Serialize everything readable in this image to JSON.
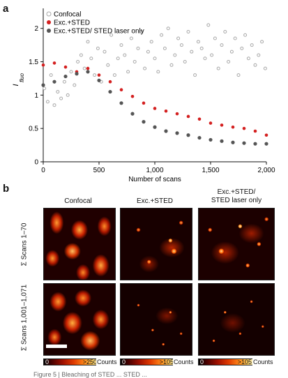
{
  "panel_a_label": "a",
  "panel_b_label": "b",
  "chart_data": {
    "type": "scatter",
    "xlabel": "Number of scans",
    "ylabel": "I",
    "ylabel_sub": "fluo",
    "xlim": [
      0,
      2000
    ],
    "ylim": [
      0,
      2.3
    ],
    "x_ticks": [
      0,
      500,
      1000,
      1500,
      2000
    ],
    "x_tick_labels": [
      "0",
      "500",
      "1,000",
      "1,500",
      "2,000"
    ],
    "y_ticks": [
      0,
      0.5,
      1,
      1.5,
      2
    ],
    "y_tick_labels": [
      "0",
      "0.5",
      "1",
      "1.5",
      "2"
    ],
    "legend_position": "top-left",
    "series": [
      {
        "name": "Confocal",
        "color": "#a8a8a8",
        "x": [
          10,
          40,
          70,
          100,
          130,
          160,
          190,
          220,
          250,
          280,
          310,
          340,
          370,
          400,
          430,
          460,
          490,
          520,
          550,
          580,
          610,
          640,
          670,
          700,
          730,
          760,
          790,
          820,
          850,
          880,
          910,
          940,
          970,
          1000,
          1030,
          1060,
          1090,
          1120,
          1150,
          1180,
          1210,
          1240,
          1270,
          1300,
          1330,
          1360,
          1390,
          1420,
          1450,
          1480,
          1510,
          1540,
          1570,
          1600,
          1630,
          1660,
          1690,
          1720,
          1750,
          1780,
          1810,
          1840,
          1870,
          1900,
          1930,
          1960,
          1990
        ],
        "y": [
          1.1,
          0.9,
          1.3,
          0.85,
          1.05,
          0.95,
          1.2,
          1.0,
          1.35,
          1.15,
          1.5,
          1.6,
          1.4,
          1.8,
          1.55,
          1.3,
          1.7,
          1.2,
          1.65,
          1.45,
          1.9,
          1.3,
          1.55,
          1.75,
          1.6,
          1.35,
          1.85,
          1.5,
          1.7,
          1.95,
          1.4,
          1.65,
          1.8,
          1.55,
          1.35,
          1.9,
          1.7,
          2.0,
          1.45,
          1.6,
          1.85,
          1.75,
          1.5,
          1.95,
          1.65,
          1.3,
          1.8,
          1.7,
          1.55,
          2.05,
          1.6,
          1.85,
          1.4,
          1.75,
          1.95,
          1.5,
          1.65,
          1.85,
          1.3,
          1.7,
          1.9,
          1.55,
          1.75,
          1.45,
          1.6,
          1.8,
          1.4
        ]
      },
      {
        "name": "Exc.+STED",
        "color": "#d42020",
        "x": [
          0,
          100,
          200,
          300,
          400,
          500,
          600,
          700,
          800,
          900,
          1000,
          1100,
          1200,
          1300,
          1400,
          1500,
          1600,
          1700,
          1800,
          1900,
          2000
        ],
        "y": [
          1.45,
          1.48,
          1.42,
          1.35,
          1.4,
          1.3,
          1.2,
          1.08,
          0.98,
          0.88,
          0.8,
          0.76,
          0.72,
          0.68,
          0.64,
          0.58,
          0.55,
          0.52,
          0.5,
          0.46,
          0.4
        ]
      },
      {
        "name": "Exc.+STED/ STED laser only",
        "color": "#555555",
        "x": [
          0,
          100,
          200,
          300,
          400,
          500,
          600,
          700,
          800,
          900,
          1000,
          1100,
          1200,
          1300,
          1400,
          1500,
          1600,
          1700,
          1800,
          1900,
          2000
        ],
        "y": [
          1.15,
          1.2,
          1.28,
          1.32,
          1.35,
          1.22,
          1.05,
          0.88,
          0.72,
          0.6,
          0.52,
          0.46,
          0.43,
          0.4,
          0.36,
          0.33,
          0.31,
          0.29,
          0.28,
          0.27,
          0.27
        ]
      }
    ]
  },
  "panel_b": {
    "columns": [
      "Confocal",
      "Exc.+STED",
      "Exc.+STED/\nSTED laser only"
    ],
    "rows": [
      "Σ Scans 1–70",
      "Σ Scans 1,001–1,071"
    ],
    "colorbars": [
      {
        "min": "0",
        "max": ">250"
      },
      {
        "min": "0",
        "max": ">105"
      },
      {
        "min": "0",
        "max": ">105"
      }
    ],
    "counts_label": "Counts"
  },
  "caption_fragment": "Figure 5 | Bleaching of STED ... STED ... "
}
